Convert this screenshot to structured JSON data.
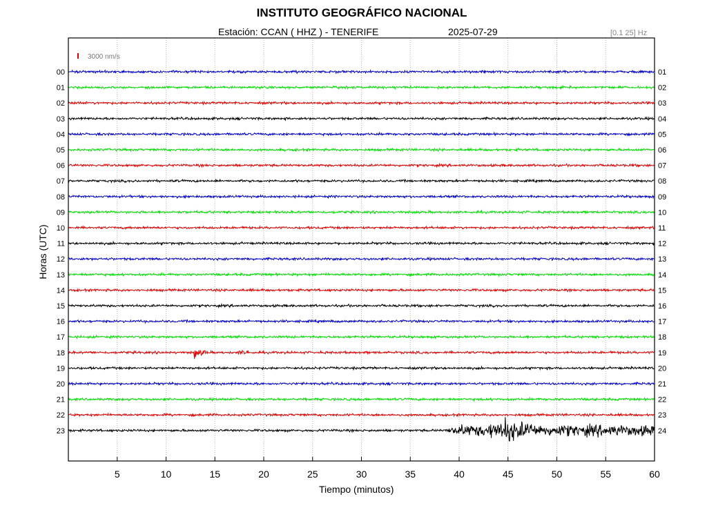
{
  "chart_data": {
    "type": "line",
    "title": "INSTITUTO GEOGRÁFICO NACIONAL",
    "station_label": "Estación:  CCAN ( HHZ ) - TENERIFE",
    "date": "2025-07-29",
    "filter_band": "[0.1 25] Hz",
    "xlabel": "Tiempo (minutos)",
    "ylabel": "Horas (UTC)",
    "xlim": [
      0,
      60
    ],
    "x_ticks": [
      "5",
      "10",
      "15",
      "20",
      "25",
      "30",
      "35",
      "40",
      "45",
      "50",
      "55",
      "60"
    ],
    "y_ticks_left": [
      "00",
      "01",
      "02",
      "03",
      "04",
      "05",
      "06",
      "07",
      "08",
      "09",
      "10",
      "11",
      "12",
      "13",
      "14",
      "15",
      "16",
      "17",
      "18",
      "19",
      "20",
      "21",
      "22",
      "23"
    ],
    "y_ticks_right": [
      "01",
      "02",
      "03",
      "04",
      "05",
      "06",
      "07",
      "08",
      "09",
      "10",
      "11",
      "12",
      "13",
      "14",
      "15",
      "16",
      "17",
      "18",
      "19",
      "20",
      "21",
      "22",
      "23",
      "24"
    ],
    "scale_bar_label": "3000 nm/s",
    "scale_bar_color": "#e00000",
    "grid": "vertical dotted lines at every 5 minutes",
    "series_colors": [
      "#0000cc",
      "#00dd00",
      "#e00000",
      "#000000"
    ],
    "events": [
      {
        "hour": "18",
        "start_min": 12.8,
        "end_min": 18.5,
        "color": "#e00000"
      },
      {
        "hour": "23",
        "start_min": 38.5,
        "end_min": 60,
        "color": "#000000"
      }
    ]
  }
}
